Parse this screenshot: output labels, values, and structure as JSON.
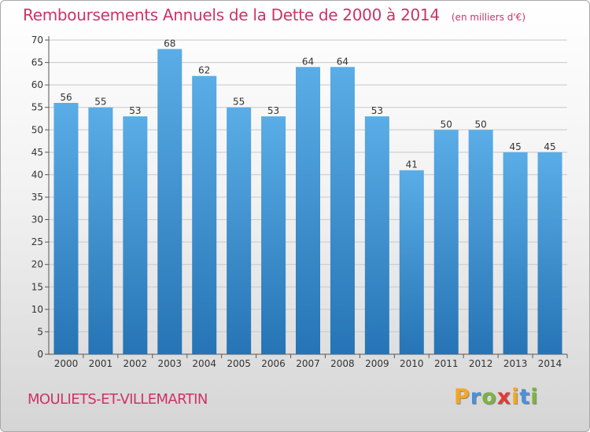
{
  "header": {
    "title": "Remboursements Annuels de la Dette de 2000 à 2014",
    "unit": "(en milliers d'€)"
  },
  "footer": {
    "commune": "MOULIETS-ET-VILLEMARTIN",
    "logo_letters": [
      "P",
      "r",
      "o",
      "x",
      "i",
      "t",
      "i"
    ],
    "logo_colors": [
      "#f5a623",
      "#4a90d9",
      "#7cb342",
      "#e53935",
      "#f5a623",
      "#4a90d9",
      "#7cb342"
    ]
  },
  "colors": {
    "bar_top": "#5aade6",
    "bar_bottom": "#2674b5",
    "accent": "#cc3366",
    "text": "#333333"
  },
  "chart_data": {
    "type": "bar",
    "categories": [
      "2000",
      "2001",
      "2002",
      "2003",
      "2004",
      "2005",
      "2006",
      "2007",
      "2008",
      "2009",
      "2010",
      "2011",
      "2012",
      "2013",
      "2014"
    ],
    "values": [
      56,
      55,
      53,
      68,
      62,
      55,
      53,
      64,
      64,
      53,
      41,
      50,
      50,
      45,
      45
    ],
    "ylim": [
      0,
      70
    ],
    "yticks": [
      0,
      5,
      10,
      15,
      20,
      25,
      30,
      35,
      40,
      45,
      50,
      55,
      60,
      65,
      70
    ],
    "grid": true,
    "data_labels": true
  }
}
